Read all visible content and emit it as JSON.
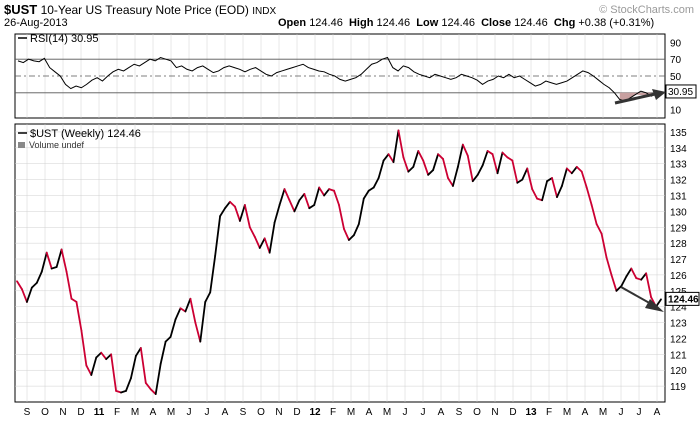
{
  "header": {
    "symbol": "$UST",
    "name": "10-Year US Treasury Note Price (EOD)",
    "exchange": "INDX",
    "date": "26-Aug-2013",
    "open_label": "Open",
    "open": "124.46",
    "high_label": "High",
    "high": "124.46",
    "low_label": "Low",
    "low": "124.46",
    "close_label": "Close",
    "close": "124.46",
    "chg_label": "Chg",
    "chg": "+0.38 (+0.31%)",
    "watermark": "© StockCharts.com"
  },
  "colors": {
    "up": "#000000",
    "down": "#cc0033",
    "grid": "#d0d0d0",
    "arrow": "#333333",
    "rsi_fill": "#c8a0a0"
  },
  "chart_data": [
    {
      "type": "line",
      "legend": "RSI(14) 30.95",
      "value_label": "30.95",
      "ylim": [
        0,
        100
      ],
      "yticks": [
        10,
        30,
        50,
        70,
        90
      ],
      "reference_lines": [
        30,
        50,
        70
      ],
      "values": [
        68,
        66,
        70,
        68,
        67,
        71,
        60,
        55,
        50,
        40,
        35,
        38,
        36,
        40,
        45,
        48,
        44,
        50,
        55,
        58,
        56,
        60,
        64,
        62,
        66,
        70,
        68,
        72,
        70,
        68,
        60,
        62,
        58,
        56,
        60,
        62,
        58,
        54,
        56,
        60,
        62,
        60,
        58,
        55,
        58,
        60,
        56,
        52,
        50,
        54,
        56,
        58,
        60,
        62,
        64,
        60,
        58,
        56,
        55,
        52,
        50,
        46,
        44,
        46,
        48,
        52,
        58,
        64,
        66,
        70,
        72,
        60,
        56,
        62,
        60,
        55,
        52,
        50,
        48,
        52,
        50,
        48,
        46,
        48,
        52,
        50,
        48,
        45,
        40,
        44,
        46,
        50,
        48,
        52,
        48,
        50,
        46,
        42,
        38,
        40,
        44,
        42,
        40,
        42,
        44,
        48,
        52,
        56,
        54,
        50,
        45,
        40,
        36,
        30,
        22,
        20,
        24,
        28,
        32,
        30,
        26,
        30,
        31
      ]
    },
    {
      "type": "line",
      "legend": "$UST (Weekly) 124.46",
      "volume_note": "Volume undef",
      "last_value_label": "124.46",
      "ylim": [
        118,
        135.5
      ],
      "yticks": [
        119,
        120,
        121,
        122,
        123,
        124,
        125,
        126,
        127,
        128,
        129,
        130,
        131,
        132,
        133,
        134,
        135
      ],
      "x_labels": [
        "S",
        "O",
        "N",
        "D",
        "11",
        "F",
        "M",
        "A",
        "M",
        "J",
        "J",
        "A",
        "S",
        "O",
        "N",
        "D",
        "12",
        "F",
        "M",
        "A",
        "M",
        "J",
        "J",
        "A",
        "S",
        "O",
        "N",
        "D",
        "13",
        "F",
        "M",
        "A",
        "M",
        "J",
        "J",
        "A"
      ],
      "values": [
        125.6,
        125.1,
        124.3,
        125.2,
        125.5,
        126.2,
        127.4,
        126.4,
        126.5,
        127.6,
        126.2,
        124.5,
        124.3,
        122.5,
        120.3,
        119.7,
        120.8,
        121.1,
        120.7,
        121.0,
        118.7,
        118.6,
        118.7,
        119.5,
        120.9,
        121.4,
        119.2,
        118.8,
        118.5,
        120.4,
        121.8,
        122.1,
        123.2,
        123.9,
        123.7,
        124.5,
        123.0,
        121.8,
        124.3,
        124.9,
        127.2,
        129.7,
        130.2,
        130.6,
        130.3,
        129.4,
        130.4,
        129.0,
        128.4,
        127.7,
        128.3,
        127.4,
        129.3,
        130.4,
        131.4,
        130.7,
        130.0,
        130.7,
        131.1,
        130.2,
        130.4,
        131.5,
        131.0,
        131.4,
        131.3,
        130.4,
        128.9,
        128.2,
        128.5,
        129.2,
        130.8,
        131.3,
        131.5,
        132.1,
        133.2,
        133.6,
        133.1,
        135.1,
        133.4,
        132.5,
        132.8,
        133.8,
        133.2,
        132.3,
        132.6,
        133.6,
        133.3,
        132.1,
        131.6,
        132.8,
        134.2,
        133.5,
        131.9,
        132.3,
        132.9,
        133.8,
        133.6,
        132.4,
        133.7,
        133.4,
        133.2,
        131.8,
        132.0,
        132.7,
        131.4,
        130.8,
        130.7,
        131.9,
        132.1,
        130.9,
        131.6,
        132.7,
        132.4,
        132.8,
        132.5,
        131.5,
        130.4,
        129.2,
        128.6,
        127.1,
        126.0,
        125.0,
        125.3,
        125.9,
        126.4,
        125.8,
        125.7,
        126.1,
        124.6,
        124.0,
        124.46
      ]
    }
  ]
}
